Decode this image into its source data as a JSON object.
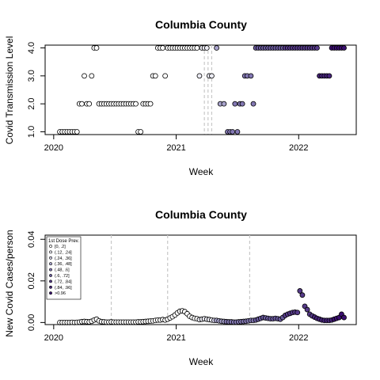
{
  "chart_data": [
    {
      "type": "scatter",
      "title": "Columbia County",
      "xlabel": "Week",
      "ylabel": "Covid Transmission Level",
      "xlim": [
        2019.93,
        2022.47
      ],
      "ylim": [
        0.9,
        4.1
      ],
      "xticks": [
        "2020",
        "2021",
        "2022"
      ],
      "yticks": [
        "1.0",
        "2.0",
        "3.0",
        "4.0"
      ],
      "vlines": [
        2021.23,
        2021.26,
        2021.29
      ],
      "points": [
        [
          2020.05,
          1,
          0
        ],
        [
          2020.07,
          1,
          0
        ],
        [
          2020.09,
          1,
          0
        ],
        [
          2020.11,
          1,
          0
        ],
        [
          2020.13,
          1,
          0
        ],
        [
          2020.15,
          1,
          0
        ],
        [
          2020.17,
          1,
          0
        ],
        [
          2020.19,
          1,
          0
        ],
        [
          2020.21,
          2,
          0
        ],
        [
          2020.23,
          2,
          0
        ],
        [
          2020.25,
          3,
          0
        ],
        [
          2020.27,
          2,
          0
        ],
        [
          2020.29,
          2,
          0
        ],
        [
          2020.31,
          3,
          0
        ],
        [
          2020.33,
          4,
          0
        ],
        [
          2020.35,
          4,
          0
        ],
        [
          2020.37,
          2,
          0
        ],
        [
          2020.39,
          2,
          0
        ],
        [
          2020.41,
          2,
          0
        ],
        [
          2020.43,
          2,
          0
        ],
        [
          2020.45,
          2,
          0
        ],
        [
          2020.47,
          2,
          0
        ],
        [
          2020.49,
          2,
          0
        ],
        [
          2020.51,
          2,
          0
        ],
        [
          2020.53,
          2,
          0
        ],
        [
          2020.55,
          2,
          0
        ],
        [
          2020.57,
          2,
          0
        ],
        [
          2020.59,
          2,
          0
        ],
        [
          2020.61,
          2,
          0
        ],
        [
          2020.63,
          2,
          0
        ],
        [
          2020.65,
          2,
          0
        ],
        [
          2020.67,
          2,
          0
        ],
        [
          2020.69,
          1,
          0
        ],
        [
          2020.71,
          1,
          0
        ],
        [
          2020.73,
          2,
          0
        ],
        [
          2020.75,
          2,
          0
        ],
        [
          2020.77,
          2,
          0
        ],
        [
          2020.79,
          2,
          0
        ],
        [
          2020.81,
          3,
          0
        ],
        [
          2020.83,
          3,
          0
        ],
        [
          2020.85,
          4,
          0
        ],
        [
          2020.87,
          4,
          0
        ],
        [
          2020.89,
          4,
          0
        ],
        [
          2020.91,
          3,
          0
        ],
        [
          2020.93,
          4,
          0
        ],
        [
          2020.95,
          4,
          0
        ],
        [
          2020.97,
          4,
          0
        ],
        [
          2020.99,
          4,
          0
        ],
        [
          2021.01,
          4,
          0
        ],
        [
          2021.03,
          4,
          0
        ],
        [
          2021.05,
          4,
          0
        ],
        [
          2021.07,
          4,
          0
        ],
        [
          2021.09,
          4,
          0
        ],
        [
          2021.11,
          4,
          0
        ],
        [
          2021.13,
          4,
          0
        ],
        [
          2021.15,
          4,
          0
        ],
        [
          2021.17,
          4,
          0
        ],
        [
          2021.19,
          3,
          1
        ],
        [
          2021.21,
          4,
          1
        ],
        [
          2021.23,
          4,
          1
        ],
        [
          2021.25,
          4,
          1
        ],
        [
          2021.27,
          3,
          1
        ],
        [
          2021.29,
          3,
          1
        ],
        [
          2021.33,
          4,
          3
        ],
        [
          2021.36,
          2,
          3
        ],
        [
          2021.39,
          2,
          3
        ],
        [
          2021.42,
          1,
          4
        ],
        [
          2021.44,
          1,
          4
        ],
        [
          2021.46,
          1,
          4
        ],
        [
          2021.48,
          2,
          4
        ],
        [
          2021.5,
          1,
          4
        ],
        [
          2021.52,
          2,
          4
        ],
        [
          2021.54,
          2,
          4
        ],
        [
          2021.56,
          3,
          4
        ],
        [
          2021.58,
          3,
          4
        ],
        [
          2021.61,
          3,
          4
        ],
        [
          2021.63,
          2,
          4
        ],
        [
          2021.65,
          4,
          5
        ],
        [
          2021.67,
          4,
          5
        ],
        [
          2021.69,
          4,
          5
        ],
        [
          2021.71,
          4,
          5
        ],
        [
          2021.73,
          4,
          5
        ],
        [
          2021.75,
          4,
          5
        ],
        [
          2021.77,
          4,
          5
        ],
        [
          2021.79,
          4,
          5
        ],
        [
          2021.81,
          4,
          5
        ],
        [
          2021.83,
          4,
          5
        ],
        [
          2021.85,
          4,
          5
        ],
        [
          2021.87,
          4,
          5
        ],
        [
          2021.89,
          4,
          6
        ],
        [
          2021.91,
          4,
          6
        ],
        [
          2021.93,
          4,
          6
        ],
        [
          2021.95,
          4,
          6
        ],
        [
          2021.97,
          4,
          6
        ],
        [
          2021.99,
          4,
          6
        ],
        [
          2022.01,
          4,
          6
        ],
        [
          2022.03,
          4,
          6
        ],
        [
          2022.05,
          4,
          6
        ],
        [
          2022.07,
          4,
          6
        ],
        [
          2022.09,
          4,
          6
        ],
        [
          2022.11,
          4,
          6
        ],
        [
          2022.13,
          4,
          6
        ],
        [
          2022.15,
          4,
          6
        ],
        [
          2022.17,
          3,
          7
        ],
        [
          2022.19,
          3,
          7
        ],
        [
          2022.21,
          3,
          7
        ],
        [
          2022.23,
          3,
          7
        ],
        [
          2022.25,
          3,
          7
        ],
        [
          2022.27,
          4,
          8
        ],
        [
          2022.29,
          4,
          8
        ],
        [
          2022.31,
          4,
          8
        ],
        [
          2022.33,
          4,
          8
        ],
        [
          2022.35,
          4,
          8
        ],
        [
          2022.37,
          4,
          8
        ]
      ]
    },
    {
      "type": "scatter",
      "title": "Columbia County",
      "xlabel": "Week",
      "ylabel": "New Covid Cases/person",
      "xlim": [
        2019.93,
        2022.47
      ],
      "ylim": [
        -0.001,
        0.042
      ],
      "xticks": [
        "2020",
        "2021",
        "2022"
      ],
      "yticks": [
        "0.00",
        "0.02",
        "0.04"
      ],
      "vlines": [
        2020.47,
        2020.93,
        2021.6
      ],
      "legend": {
        "title": "1st Dose Prev.",
        "position": "top-left",
        "entries": [
          "[0, .2]",
          "(.12, .24]",
          "(.24, .36]",
          "(.36, .48]",
          "(.48, .6]",
          "(.6, .72]",
          "(.72, .84]",
          "(.84, .96]",
          ">0.96"
        ]
      },
      "points": [
        [
          2020.05,
          0.0,
          0
        ],
        [
          2020.07,
          0.0,
          0
        ],
        [
          2020.09,
          0.0,
          0
        ],
        [
          2020.11,
          0.0,
          0
        ],
        [
          2020.13,
          0.0,
          0
        ],
        [
          2020.15,
          0.0001,
          0
        ],
        [
          2020.17,
          0.0,
          0
        ],
        [
          2020.19,
          0.0001,
          0
        ],
        [
          2020.21,
          0.0002,
          0
        ],
        [
          2020.23,
          0.0004,
          0
        ],
        [
          2020.25,
          0.0005,
          0
        ],
        [
          2020.27,
          0.0004,
          0
        ],
        [
          2020.29,
          0.0003,
          0
        ],
        [
          2020.31,
          0.0006,
          0
        ],
        [
          2020.33,
          0.0012,
          0
        ],
        [
          2020.35,
          0.0016,
          0
        ],
        [
          2020.37,
          0.0008,
          0
        ],
        [
          2020.39,
          0.0004,
          0
        ],
        [
          2020.41,
          0.0003,
          0
        ],
        [
          2020.43,
          0.0002,
          0
        ],
        [
          2020.45,
          0.0002,
          0
        ],
        [
          2020.47,
          0.0003,
          0
        ],
        [
          2020.49,
          0.0002,
          0
        ],
        [
          2020.51,
          0.0002,
          0
        ],
        [
          2020.53,
          0.0002,
          0
        ],
        [
          2020.55,
          0.0002,
          0
        ],
        [
          2020.57,
          0.0002,
          0
        ],
        [
          2020.59,
          0.0002,
          0
        ],
        [
          2020.61,
          0.0002,
          0
        ],
        [
          2020.63,
          0.0002,
          0
        ],
        [
          2020.65,
          0.0002,
          0
        ],
        [
          2020.67,
          0.0002,
          0
        ],
        [
          2020.69,
          0.0003,
          0
        ],
        [
          2020.71,
          0.0003,
          0
        ],
        [
          2020.73,
          0.0004,
          0
        ],
        [
          2020.75,
          0.0005,
          0
        ],
        [
          2020.77,
          0.0006,
          0
        ],
        [
          2020.79,
          0.0007,
          0
        ],
        [
          2020.81,
          0.0008,
          0
        ],
        [
          2020.83,
          0.001,
          0
        ],
        [
          2020.85,
          0.0012,
          0
        ],
        [
          2020.87,
          0.0012,
          0
        ],
        [
          2020.89,
          0.0014,
          0
        ],
        [
          2020.91,
          0.0012,
          0
        ],
        [
          2020.93,
          0.0016,
          0
        ],
        [
          2020.95,
          0.0022,
          0
        ],
        [
          2020.97,
          0.0028,
          0
        ],
        [
          2020.99,
          0.0036,
          0
        ],
        [
          2021.01,
          0.0046,
          0
        ],
        [
          2021.03,
          0.0054,
          0
        ],
        [
          2021.05,
          0.0056,
          0
        ],
        [
          2021.07,
          0.0052,
          0
        ],
        [
          2021.09,
          0.0042,
          0
        ],
        [
          2021.11,
          0.003,
          0
        ],
        [
          2021.13,
          0.0024,
          0
        ],
        [
          2021.15,
          0.002,
          0
        ],
        [
          2021.17,
          0.0018,
          0
        ],
        [
          2021.19,
          0.0014,
          1
        ],
        [
          2021.21,
          0.0016,
          1
        ],
        [
          2021.23,
          0.0018,
          1
        ],
        [
          2021.25,
          0.0016,
          1
        ],
        [
          2021.27,
          0.0014,
          1
        ],
        [
          2021.29,
          0.0012,
          1
        ],
        [
          2021.31,
          0.001,
          2
        ],
        [
          2021.33,
          0.001,
          3
        ],
        [
          2021.35,
          0.0008,
          3
        ],
        [
          2021.37,
          0.0006,
          3
        ],
        [
          2021.39,
          0.0005,
          3
        ],
        [
          2021.41,
          0.0004,
          4
        ],
        [
          2021.43,
          0.0003,
          4
        ],
        [
          2021.45,
          0.0003,
          4
        ],
        [
          2021.47,
          0.0002,
          4
        ],
        [
          2021.49,
          0.0002,
          4
        ],
        [
          2021.51,
          0.0003,
          4
        ],
        [
          2021.53,
          0.0004,
          4
        ],
        [
          2021.55,
          0.0005,
          4
        ],
        [
          2021.57,
          0.0006,
          4
        ],
        [
          2021.59,
          0.0008,
          4
        ],
        [
          2021.61,
          0.001,
          4
        ],
        [
          2021.63,
          0.001,
          4
        ],
        [
          2021.65,
          0.0012,
          5
        ],
        [
          2021.67,
          0.0016,
          5
        ],
        [
          2021.69,
          0.002,
          5
        ],
        [
          2021.71,
          0.0024,
          5
        ],
        [
          2021.73,
          0.0022,
          5
        ],
        [
          2021.75,
          0.002,
          5
        ],
        [
          2021.77,
          0.0018,
          5
        ],
        [
          2021.79,
          0.0018,
          5
        ],
        [
          2021.81,
          0.002,
          5
        ],
        [
          2021.83,
          0.0018,
          5
        ],
        [
          2021.85,
          0.0016,
          5
        ],
        [
          2021.87,
          0.0024,
          5
        ],
        [
          2021.89,
          0.0034,
          6
        ],
        [
          2021.91,
          0.004,
          6
        ],
        [
          2021.93,
          0.0044,
          6
        ],
        [
          2021.95,
          0.0048,
          6
        ],
        [
          2021.97,
          0.005,
          6
        ],
        [
          2021.99,
          0.0048,
          6
        ],
        [
          2022.01,
          0.0152,
          6
        ],
        [
          2022.03,
          0.0132,
          6
        ],
        [
          2022.05,
          0.0078,
          6
        ],
        [
          2022.07,
          0.0062,
          6
        ],
        [
          2022.09,
          0.004,
          6
        ],
        [
          2022.11,
          0.0032,
          6
        ],
        [
          2022.13,
          0.0026,
          7
        ],
        [
          2022.15,
          0.002,
          7
        ],
        [
          2022.17,
          0.0016,
          7
        ],
        [
          2022.19,
          0.0012,
          7
        ],
        [
          2022.21,
          0.001,
          7
        ],
        [
          2022.23,
          0.001,
          7
        ],
        [
          2022.25,
          0.001,
          7
        ],
        [
          2022.27,
          0.0012,
          7
        ],
        [
          2022.29,
          0.0016,
          8
        ],
        [
          2022.31,
          0.002,
          8
        ],
        [
          2022.33,
          0.0024,
          8
        ],
        [
          2022.35,
          0.004,
          8
        ],
        [
          2022.37,
          0.0024,
          8
        ]
      ]
    }
  ],
  "palette": [
    "#ffffff",
    "#ececf4",
    "#cfcce3",
    "#a8a3cc",
    "#8378b3",
    "#6a5b9e",
    "#563b89",
    "#46237a",
    "#3b0f70"
  ]
}
